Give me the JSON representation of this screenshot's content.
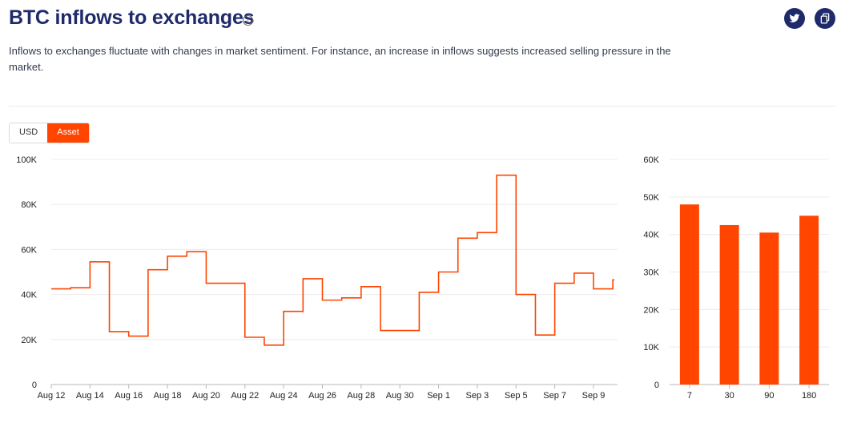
{
  "header": {
    "title": "BTC inflows to exchanges",
    "info_icon": "info-icon",
    "description": "Inflows to exchanges fluctuate with changes in market sentiment. For instance, an increase in inflows suggests increased selling pressure in the market."
  },
  "actions": {
    "twitter_icon": "twitter-icon",
    "copy_icon": "copy-icon",
    "background": "#1f2a6b"
  },
  "toggle": {
    "options": [
      "USD",
      "Asset"
    ],
    "selected": "Asset",
    "active_color": "#ff4500"
  },
  "chart_data": [
    {
      "type": "line",
      "step": true,
      "color": "#ff4500",
      "x_tick_labels": [
        "Aug 12",
        "Aug 14",
        "Aug 16",
        "Aug 18",
        "Aug 20",
        "Aug 22",
        "Aug 24",
        "Aug 26",
        "Aug 28",
        "Aug 30",
        "Sep 1",
        "Sep 3",
        "Sep 5",
        "Sep 7",
        "Sep 9"
      ],
      "y_tick_labels": [
        "0",
        "20K",
        "40K",
        "60K",
        "80K",
        "100K"
      ],
      "ylim": [
        0,
        100000
      ],
      "grid": true,
      "x": [
        "Aug 12",
        "Aug 13",
        "Aug 14",
        "Aug 15",
        "Aug 16",
        "Aug 17",
        "Aug 18",
        "Aug 19",
        "Aug 20",
        "Aug 21",
        "Aug 22",
        "Aug 23",
        "Aug 24",
        "Aug 25",
        "Aug 26",
        "Aug 27",
        "Aug 28",
        "Aug 29",
        "Aug 30",
        "Aug 31",
        "Sep 1",
        "Sep 2",
        "Sep 3",
        "Sep 4",
        "Sep 5",
        "Sep 6",
        "Sep 7",
        "Sep 8",
        "Sep 9",
        "Sep 10"
      ],
      "values": [
        42500,
        43000,
        54500,
        23500,
        21500,
        51000,
        57000,
        59000,
        45000,
        45000,
        21000,
        17500,
        32500,
        47000,
        37500,
        38500,
        43500,
        24000,
        24000,
        41000,
        50000,
        65000,
        67500,
        93000,
        40000,
        22000,
        45000,
        49500,
        42500,
        46500
      ]
    },
    {
      "type": "bar",
      "color": "#ff4500",
      "categories": [
        "7",
        "30",
        "90",
        "180"
      ],
      "values": [
        48000,
        42500,
        40500,
        45000
      ],
      "y_tick_labels": [
        "0",
        "10K",
        "20K",
        "30K",
        "40K",
        "50K",
        "60K"
      ],
      "ylim": [
        0,
        60000
      ],
      "grid": true
    }
  ]
}
